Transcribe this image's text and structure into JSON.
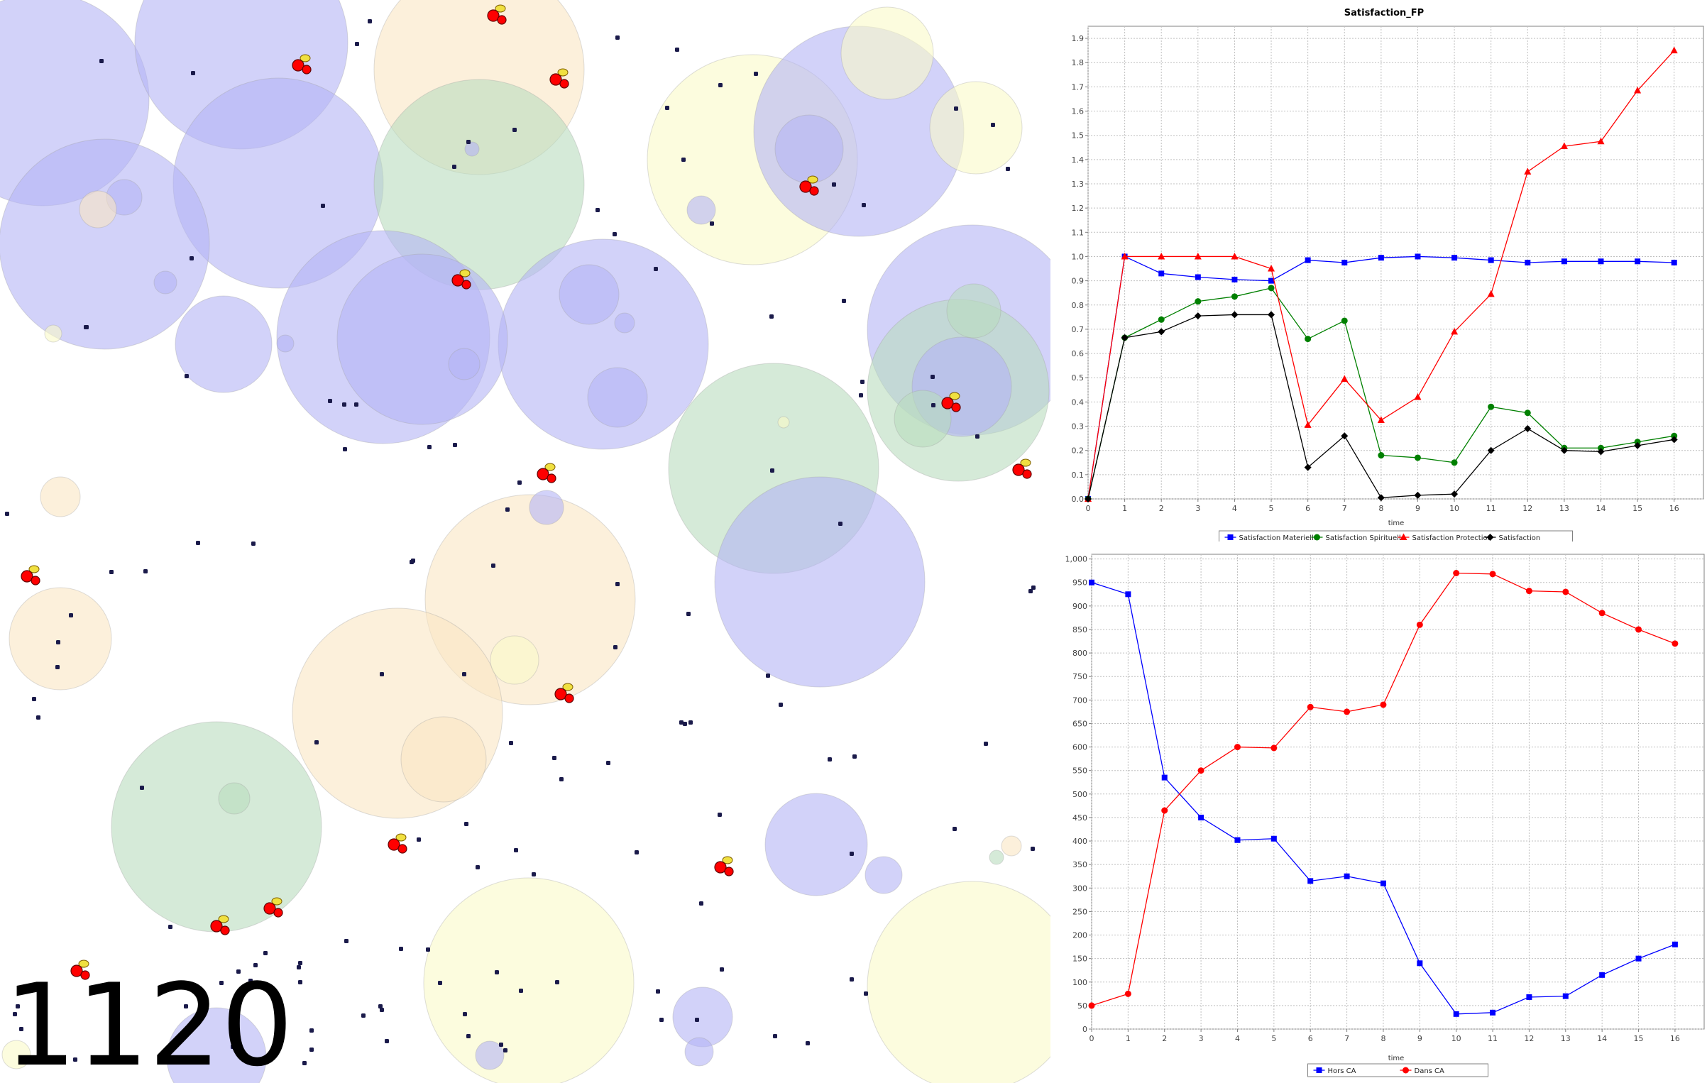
{
  "simulation": {
    "tick": "1120"
  },
  "colors": {
    "blue": "#0000ff",
    "green": "#008000",
    "red": "#ff0000",
    "black": "#000000",
    "circle_blue": "#b4b4f5",
    "circle_green": "#b9dcbe",
    "circle_yellow": "#fafac8",
    "circle_orange": "#fae6c3"
  },
  "chart_data": [
    {
      "type": "line",
      "title": "Satisfaction_FP",
      "xlabel": "time",
      "ylabel": "",
      "x": [
        0,
        1,
        2,
        3,
        4,
        5,
        6,
        7,
        8,
        9,
        10,
        11,
        12,
        13,
        14,
        15,
        16
      ],
      "xticks": [
        "0",
        "1",
        "2",
        "3",
        "4",
        "5",
        "6",
        "7",
        "8",
        "9",
        "10",
        "11",
        "12",
        "13",
        "14",
        "15",
        "16"
      ],
      "yticks": [
        "0.0",
        "0.1",
        "0.2",
        "0.3",
        "0.4",
        "0.5",
        "0.6",
        "0.7",
        "0.8",
        "0.9",
        "1.0",
        "1.1",
        "1.2",
        "1.3",
        "1.4",
        "1.5",
        "1.6",
        "1.7",
        "1.8",
        "1.9"
      ],
      "xlim": [
        0,
        16.8
      ],
      "ylim": [
        0,
        1.95
      ],
      "grid": true,
      "legend": "bottom",
      "series": [
        {
          "name": "Satisfaction Materielle",
          "color": "#0000ff",
          "marker": "square",
          "values": [
            0.0,
            1.0,
            0.93,
            0.915,
            0.905,
            0.9,
            0.985,
            0.975,
            0.995,
            1.0,
            0.995,
            0.985,
            0.975,
            0.98,
            0.98,
            0.98,
            0.975
          ]
        },
        {
          "name": "Satisfaction Spirituelle",
          "color": "#008000",
          "marker": "circle",
          "values": [
            0.0,
            0.665,
            0.74,
            0.815,
            0.835,
            0.87,
            0.66,
            0.735,
            0.18,
            0.17,
            0.15,
            0.38,
            0.355,
            0.21,
            0.21,
            0.235,
            0.26
          ]
        },
        {
          "name": "Satisfaction Protection",
          "color": "#ff0000",
          "marker": "triangle",
          "values": [
            0.0,
            1.0,
            1.0,
            1.0,
            1.0,
            0.95,
            0.305,
            0.495,
            0.325,
            0.42,
            0.69,
            0.845,
            1.35,
            1.455,
            1.475,
            1.685,
            1.85
          ]
        },
        {
          "name": "Satisfaction",
          "color": "#000000",
          "marker": "diamond",
          "values": [
            0.0,
            0.665,
            0.69,
            0.755,
            0.76,
            0.76,
            0.13,
            0.26,
            0.005,
            0.015,
            0.02,
            0.2,
            0.29,
            0.2,
            0.195,
            0.22,
            0.245
          ]
        }
      ]
    },
    {
      "type": "line",
      "title": "",
      "xlabel": "time",
      "ylabel": "",
      "x": [
        0,
        1,
        2,
        3,
        4,
        5,
        6,
        7,
        8,
        9,
        10,
        11,
        12,
        13,
        14,
        15,
        16
      ],
      "xticks": [
        "0",
        "1",
        "2",
        "3",
        "4",
        "5",
        "6",
        "7",
        "8",
        "9",
        "10",
        "11",
        "12",
        "13",
        "14",
        "15",
        "16"
      ],
      "yticks": [
        "0",
        "50",
        "100",
        "150",
        "200",
        "250",
        "300",
        "350",
        "400",
        "450",
        "500",
        "550",
        "600",
        "650",
        "700",
        "750",
        "800",
        "850",
        "900",
        "950",
        "1,000"
      ],
      "xlim": [
        0,
        16.8
      ],
      "ylim": [
        0,
        1010
      ],
      "grid": true,
      "legend": "bottom",
      "series": [
        {
          "name": "Hors CA",
          "color": "#0000ff",
          "marker": "square",
          "values": [
            950,
            925,
            535,
            450,
            402,
            405,
            315,
            325,
            310,
            140,
            32,
            35,
            68,
            70,
            115,
            150,
            180
          ]
        },
        {
          "name": "Dans CA",
          "color": "#ff0000",
          "marker": "circle",
          "values": [
            50,
            75,
            465,
            550,
            600,
            598,
            685,
            675,
            690,
            860,
            970,
            968,
            932,
            930,
            885,
            850,
            820
          ]
        }
      ]
    }
  ]
}
